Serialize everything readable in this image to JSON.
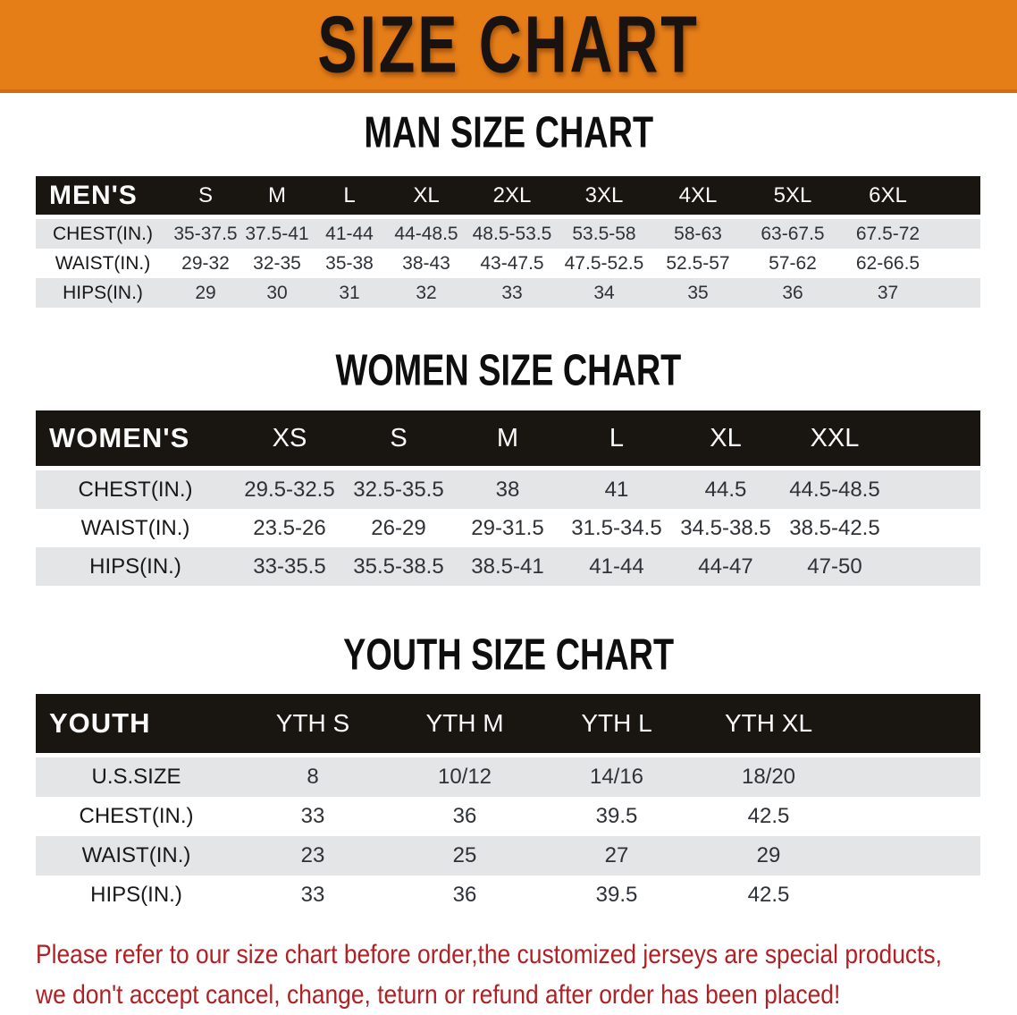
{
  "banner": {
    "title": "SIZE CHART"
  },
  "colors": {
    "banner_orange": "#E67E18",
    "banner_edge": "#CF6D10",
    "header_band_black": "#191511",
    "row_gray": "#E3E5E7",
    "disclaimer_red": "#AF2124"
  },
  "sections": [
    {
      "heading": "MAN SIZE CHART",
      "table": {
        "label": "MEN'S",
        "columns": [
          "S",
          "M",
          "L",
          "XL",
          "2XL",
          "3XL",
          "4XL",
          "5XL",
          "6XL"
        ],
        "rows": [
          {
            "label": "CHEST(IN.)",
            "values": [
              "35-37.5",
              "37.5-41",
              "41-44",
              "44-48.5",
              "48.5-53.5",
              "53.5-58",
              "58-63",
              "63-67.5",
              "67.5-72"
            ]
          },
          {
            "label": "WAIST(IN.)",
            "values": [
              "29-32",
              "32-35",
              "35-38",
              "38-43",
              "43-47.5",
              "47.5-52.5",
              "52.5-57",
              "57-62",
              "62-66.5"
            ]
          },
          {
            "label": "HIPS(IN.)",
            "values": [
              "29",
              "30",
              "31",
              "32",
              "33",
              "34",
              "35",
              "36",
              "37"
            ]
          }
        ]
      }
    },
    {
      "heading": "WOMEN SIZE CHART",
      "table": {
        "label": "WOMEN'S",
        "columns": [
          "XS",
          "S",
          "M",
          "L",
          "XL",
          "XXL"
        ],
        "rows": [
          {
            "label": "CHEST(IN.)",
            "values": [
              "29.5-32.5",
              "32.5-35.5",
              "38",
              "41",
              "44.5",
              "44.5-48.5"
            ]
          },
          {
            "label": "WAIST(IN.)",
            "values": [
              "23.5-26",
              "26-29",
              "29-31.5",
              "31.5-34.5",
              "34.5-38.5",
              "38.5-42.5"
            ]
          },
          {
            "label": "HIPS(IN.)",
            "values": [
              "33-35.5",
              "35.5-38.5",
              "38.5-41",
              "41-44",
              "44-47",
              "47-50"
            ]
          }
        ]
      }
    },
    {
      "heading": "YOUTH SIZE CHART",
      "table": {
        "label": "YOUTH",
        "columns": [
          "YTH S",
          "YTH M",
          "YTH L",
          "YTH XL"
        ],
        "rows": [
          {
            "label": "U.S.SIZE",
            "values": [
              "8",
              "10/12",
              "14/16",
              "18/20"
            ]
          },
          {
            "label": "CHEST(IN.)",
            "values": [
              "33",
              "36",
              "39.5",
              "42.5"
            ]
          },
          {
            "label": "WAIST(IN.)",
            "values": [
              "23",
              "25",
              "27",
              "29"
            ]
          },
          {
            "label": "HIPS(IN.)",
            "values": [
              "33",
              "36",
              "39.5",
              "42.5"
            ]
          }
        ]
      }
    }
  ],
  "disclaimer": {
    "line1": "Please refer to our size chart before order,the customized jerseys are special products,",
    "line2": "we don't accept cancel, change, teturn or refund after order has been placed!"
  },
  "chart_data": [
    {
      "type": "table",
      "title": "MAN SIZE CHART",
      "columns": [
        "MEN'S",
        "S",
        "M",
        "L",
        "XL",
        "2XL",
        "3XL",
        "4XL",
        "5XL",
        "6XL"
      ],
      "rows": [
        [
          "CHEST(IN.)",
          "35-37.5",
          "37.5-41",
          "41-44",
          "44-48.5",
          "48.5-53.5",
          "53.5-58",
          "58-63",
          "63-67.5",
          "67.5-72"
        ],
        [
          "WAIST(IN.)",
          "29-32",
          "32-35",
          "35-38",
          "38-43",
          "43-47.5",
          "47.5-52.5",
          "52.5-57",
          "57-62",
          "62-66.5"
        ],
        [
          "HIPS(IN.)",
          "29",
          "30",
          "31",
          "32",
          "33",
          "34",
          "35",
          "36",
          "37"
        ]
      ]
    },
    {
      "type": "table",
      "title": "WOMEN SIZE CHART",
      "columns": [
        "WOMEN'S",
        "XS",
        "S",
        "M",
        "L",
        "XL",
        "XXL"
      ],
      "rows": [
        [
          "CHEST(IN.)",
          "29.5-32.5",
          "32.5-35.5",
          "38",
          "41",
          "44.5",
          "44.5-48.5"
        ],
        [
          "WAIST(IN.)",
          "23.5-26",
          "26-29",
          "29-31.5",
          "31.5-34.5",
          "34.5-38.5",
          "38.5-42.5"
        ],
        [
          "HIPS(IN.)",
          "33-35.5",
          "35.5-38.5",
          "38.5-41",
          "41-44",
          "44-47",
          "47-50"
        ]
      ]
    },
    {
      "type": "table",
      "title": "YOUTH SIZE CHART",
      "columns": [
        "YOUTH",
        "YTH S",
        "YTH M",
        "YTH L",
        "YTH XL"
      ],
      "rows": [
        [
          "U.S.SIZE",
          "8",
          "10/12",
          "14/16",
          "18/20"
        ],
        [
          "CHEST(IN.)",
          "33",
          "36",
          "39.5",
          "42.5"
        ],
        [
          "WAIST(IN.)",
          "23",
          "25",
          "27",
          "29"
        ],
        [
          "HIPS(IN.)",
          "33",
          "36",
          "39.5",
          "42.5"
        ]
      ]
    }
  ]
}
